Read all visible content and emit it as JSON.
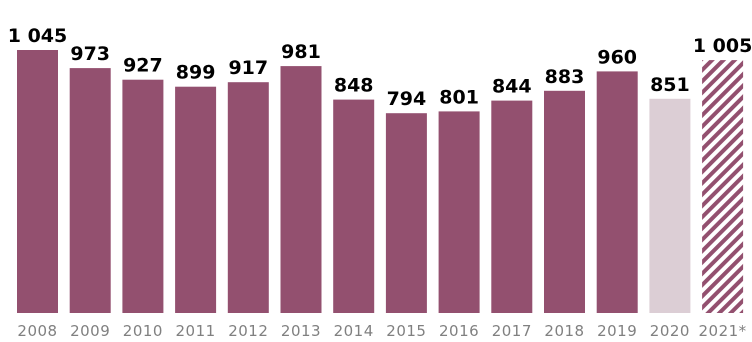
{
  "chart_data": {
    "type": "bar",
    "categories": [
      "2008",
      "2009",
      "2010",
      "2011",
      "2012",
      "2013",
      "2014",
      "2015",
      "2016",
      "2017",
      "2018",
      "2019",
      "2020",
      "2021*"
    ],
    "values": [
      1045,
      973,
      927,
      899,
      917,
      981,
      848,
      794,
      801,
      844,
      883,
      960,
      851,
      1005
    ],
    "value_labels": [
      "1 045",
      "973",
      "927",
      "899",
      "917",
      "981",
      "848",
      "794",
      "801",
      "844",
      "883",
      "960",
      "851",
      "1 005"
    ],
    "bar_styles": [
      "solid",
      "solid",
      "solid",
      "solid",
      "solid",
      "solid",
      "solid",
      "solid",
      "solid",
      "solid",
      "solid",
      "solid",
      "light",
      "hatched"
    ],
    "title": "",
    "xlabel": "",
    "ylabel": "",
    "ylim": [
      0,
      1045
    ],
    "grid": false,
    "legend": "none"
  },
  "colors": {
    "bar": "#93506F",
    "bar_light": "#DCCED5",
    "hatch": "#93506F",
    "value_text": "#000000",
    "tick_text": "#808080"
  }
}
